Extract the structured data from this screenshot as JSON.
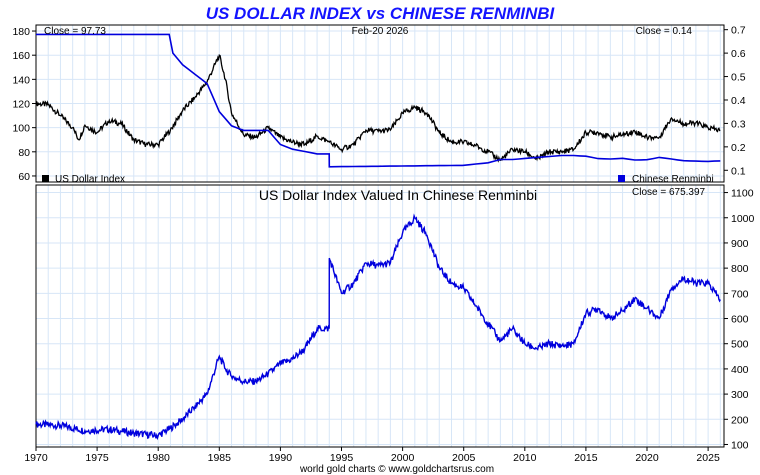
{
  "header": {
    "title": "US DOLLAR INDEX vs CHINESE RENMINBI",
    "date": "Feb-20  2026",
    "footer": "world gold charts © www.goldchartsrus.com"
  },
  "colors": {
    "title": "#1414ff",
    "usd": "#000000",
    "cny": "#0000dd",
    "grid": "#d7e6f7"
  },
  "chart_data": [
    {
      "type": "line",
      "title": "",
      "xlim": [
        1970,
        2026.3
      ],
      "ylim_left": [
        55,
        185
      ],
      "ylim_right": [
        0.05,
        0.72
      ],
      "left_ticks": [
        "60",
        "80",
        "100",
        "120",
        "140",
        "160",
        "180"
      ],
      "right_ticks": [
        "0.1",
        "0.2",
        "0.3",
        "0.4",
        "0.5",
        "0.6",
        "0.7"
      ],
      "close_left": "Close = 97.73",
      "close_right": "Close = 0.14",
      "grid": true,
      "legend": "bottom",
      "series": [
        {
          "name": "US Dollar Index",
          "axis": "left",
          "color": "#000000",
          "x": [
            1970,
            1971,
            1972,
            1973,
            1973.5,
            1974,
            1975,
            1976,
            1977,
            1978,
            1979,
            1980,
            1981,
            1982,
            1983,
            1984,
            1985,
            1985.5,
            1986,
            1987,
            1988,
            1989,
            1990,
            1991,
            1992,
            1993,
            1994,
            1995,
            1996,
            1997,
            1998,
            1999,
            2000,
            2001,
            2002,
            2003,
            2004,
            2005,
            2006,
            2007,
            2008,
            2009,
            2010,
            2011,
            2012,
            2013,
            2014,
            2015,
            2016,
            2017,
            2018,
            2019,
            2020,
            2021,
            2022,
            2023,
            2024,
            2025,
            2026
          ],
          "values": [
            120,
            119,
            110,
            100,
            90,
            102,
            96,
            106,
            103,
            90,
            86,
            86,
            98,
            114,
            125,
            138,
            160,
            140,
            112,
            94,
            92,
            100,
            92,
            88,
            86,
            93,
            88,
            82,
            86,
            98,
            97,
            98,
            112,
            117,
            112,
            96,
            88,
            88,
            85,
            80,
            73,
            82,
            80,
            74,
            80,
            80,
            82,
            96,
            96,
            92,
            94,
            97,
            92,
            92,
            108,
            103,
            104,
            100,
            97.73
          ]
        },
        {
          "name": "Chinese Renminbi",
          "axis": "right",
          "color": "#0000dd",
          "x": [
            1970,
            1980.9,
            1981.2,
            1982,
            1983,
            1984,
            1985,
            1986,
            1987,
            1988,
            1989,
            1990,
            1991,
            1992,
            1993,
            1993.99,
            1994,
            2004.9,
            2005.5,
            2007,
            2008,
            2009,
            2011,
            2013,
            2014,
            2015,
            2016,
            2017,
            2018,
            2019,
            2020,
            2021,
            2022,
            2023,
            2024,
            2025,
            2026
          ],
          "values": [
            0.68,
            0.68,
            0.6,
            0.55,
            0.51,
            0.47,
            0.35,
            0.29,
            0.27,
            0.27,
            0.27,
            0.21,
            0.19,
            0.18,
            0.17,
            0.17,
            0.115,
            0.121,
            0.124,
            0.132,
            0.146,
            0.146,
            0.155,
            0.163,
            0.163,
            0.16,
            0.15,
            0.148,
            0.151,
            0.144,
            0.145,
            0.155,
            0.148,
            0.141,
            0.139,
            0.138,
            0.14
          ]
        }
      ]
    },
    {
      "type": "line",
      "title": "US Dollar Index Valued In Chinese Renminbi",
      "xlim": [
        1970,
        2026.3
      ],
      "ylim": [
        90,
        1130
      ],
      "right_ticks": [
        "100",
        "200",
        "300",
        "400",
        "500",
        "600",
        "700",
        "800",
        "900",
        "1000",
        "1100"
      ],
      "x_ticks": [
        "1970",
        "1975",
        "1980",
        "1985",
        "1990",
        "1995",
        "2000",
        "2005",
        "2010",
        "2015",
        "2020",
        "2025"
      ],
      "close_label": "Close = 675.397",
      "grid": true,
      "series": [
        {
          "name": "",
          "color": "#0000dd",
          "x": [
            1970,
            1972,
            1974,
            1976,
            1978,
            1980,
            1981,
            1982,
            1983,
            1984,
            1985,
            1985.5,
            1986,
            1987,
            1988,
            1989,
            1990,
            1991,
            1992,
            1993,
            1993.99,
            1994,
            1995,
            1996,
            1997,
            1998,
            1999,
            2000,
            2001,
            2002,
            2003,
            2004,
            2005,
            2006,
            2007,
            2008,
            2009,
            2010,
            2011,
            2012,
            2013,
            2014,
            2015,
            2016,
            2017,
            2018,
            2019,
            2020,
            2021,
            2022,
            2023,
            2024,
            2025,
            2026
          ],
          "values": [
            180,
            175,
            155,
            160,
            145,
            135,
            165,
            200,
            250,
            300,
            450,
            400,
            370,
            350,
            350,
            380,
            420,
            440,
            480,
            560,
            560,
            840,
            700,
            740,
            820,
            810,
            820,
            940,
            1000,
            930,
            800,
            740,
            720,
            650,
            580,
            510,
            560,
            500,
            480,
            500,
            490,
            500,
            620,
            640,
            600,
            630,
            680,
            640,
            600,
            720,
            760,
            740,
            740,
            675.4
          ]
        }
      ]
    }
  ]
}
